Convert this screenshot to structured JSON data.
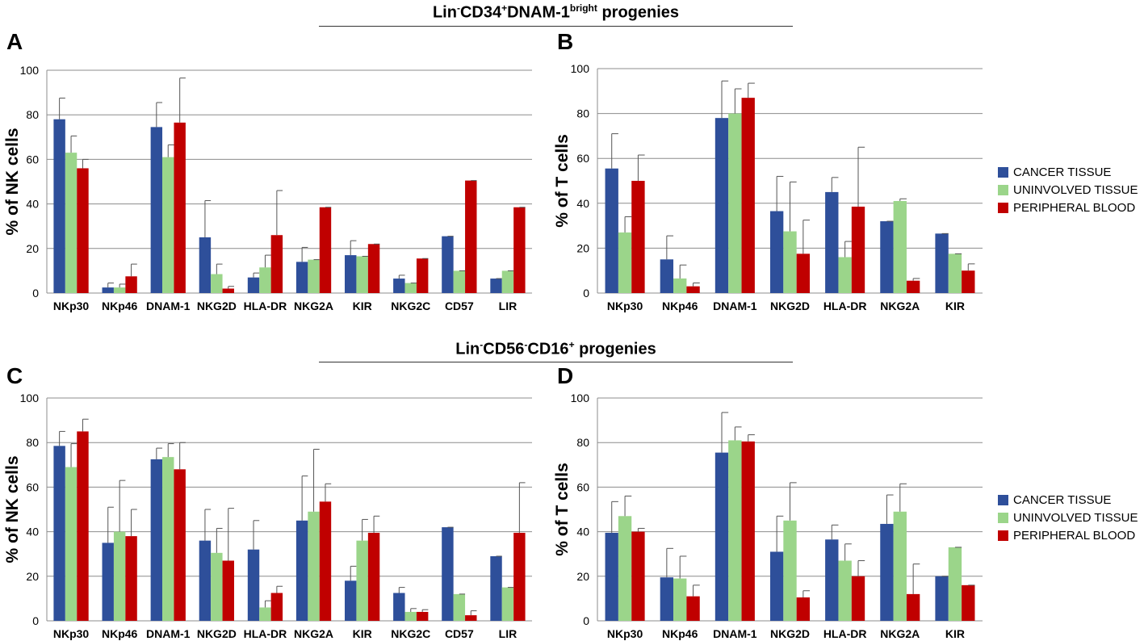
{
  "titles": {
    "top": {
      "part1": "Lin",
      "sup1": "-",
      "part2": "CD34",
      "sup2": "+",
      "part3": "DNAM-1",
      "sup3": "bright",
      "part4": " progenies"
    },
    "bottom": {
      "part1": "Lin",
      "sup1": "-",
      "part2": "CD56",
      "sup2": "-",
      "part3": "CD16",
      "sup3": "+",
      "part4": " progenies"
    }
  },
  "colors": {
    "cancer": "#2E4F9A",
    "uninvolved": "#9BD58A",
    "blood": "#C00000"
  },
  "legend": [
    "CANCER TISSUE",
    "UNINVOLVED TISSUE",
    "PERIPHERAL BLOOD"
  ],
  "chart_data": [
    {
      "panel": "A",
      "type": "bar",
      "ylabel": "% of NK cells",
      "ylim": [
        0,
        100
      ],
      "yticks": [
        0,
        20,
        40,
        60,
        80,
        100
      ],
      "categories": [
        "NKp30",
        "NKp46",
        "DNAM-1",
        "NKG2D",
        "HLA-DR",
        "NKG2A",
        "KIR",
        "NKG2C",
        "CD57",
        "LIR"
      ],
      "series": [
        {
          "name": "CANCER TISSUE",
          "values": [
            78,
            2.5,
            74.5,
            25,
            7,
            14,
            17,
            6.5,
            25.5,
            6.5
          ],
          "errors": [
            9.5,
            2,
            11,
            16.5,
            2,
            6.5,
            6.5,
            1.5,
            0,
            0
          ]
        },
        {
          "name": "UNINVOLVED TISSUE",
          "values": [
            63,
            2.5,
            61,
            8.5,
            11.5,
            15,
            16.5,
            4.5,
            10,
            10
          ],
          "errors": [
            7.5,
            1.5,
            5.5,
            4.5,
            5.5,
            0,
            0,
            0,
            0,
            0
          ]
        },
        {
          "name": "PERIPHERAL BLOOD",
          "values": [
            56,
            7.5,
            76.5,
            2,
            26,
            38.5,
            22,
            15.5,
            50.5,
            38.5
          ],
          "errors": [
            4,
            5.5,
            20,
            1,
            20,
            0,
            0,
            0,
            0,
            0
          ]
        }
      ]
    },
    {
      "panel": "B",
      "type": "bar",
      "ylabel": "% of T cells",
      "ylim": [
        0,
        100
      ],
      "yticks": [
        0,
        20,
        40,
        60,
        80,
        100
      ],
      "categories": [
        "NKp30",
        "NKp46",
        "DNAM-1",
        "NKG2D",
        "HLA-DR",
        "NKG2A",
        "KIR"
      ],
      "series": [
        {
          "name": "CANCER TISSUE",
          "values": [
            55.5,
            15,
            78,
            36.5,
            45,
            32,
            26.5
          ],
          "errors": [
            15.5,
            10.5,
            16.5,
            15.5,
            6.5,
            0,
            0
          ]
        },
        {
          "name": "UNINVOLVED TISSUE",
          "values": [
            27,
            6.5,
            80,
            27.5,
            16,
            41,
            17.5
          ],
          "errors": [
            7,
            6,
            11,
            22,
            7,
            1,
            0
          ]
        },
        {
          "name": "PERIPHERAL BLOOD",
          "values": [
            50,
            3,
            87,
            17.5,
            38.5,
            5.5,
            10
          ],
          "errors": [
            11.5,
            1.5,
            6.5,
            15,
            26.5,
            1,
            3
          ]
        }
      ]
    },
    {
      "panel": "C",
      "type": "bar",
      "ylabel": "% of NK cells",
      "ylim": [
        0,
        100
      ],
      "yticks": [
        0,
        20,
        40,
        60,
        80,
        100
      ],
      "categories": [
        "NKp30",
        "NKp46",
        "DNAM-1",
        "NKG2D",
        "HLA-DR",
        "NKG2A",
        "KIR",
        "NKG2C",
        "CD57",
        "LIR"
      ],
      "series": [
        {
          "name": "CANCER TISSUE",
          "values": [
            78.5,
            35,
            72.5,
            36,
            32,
            45,
            18,
            12.5,
            42,
            29
          ],
          "errors": [
            6.5,
            16,
            5,
            14,
            13,
            20,
            6.5,
            2.5,
            0,
            0
          ]
        },
        {
          "name": "UNINVOLVED TISSUE",
          "values": [
            69,
            40,
            73.5,
            30.5,
            6,
            49,
            36,
            4,
            12,
            15
          ],
          "errors": [
            10.5,
            23,
            6,
            11,
            3,
            28,
            9.5,
            1.5,
            0,
            0
          ]
        },
        {
          "name": "PERIPHERAL BLOOD",
          "values": [
            85,
            38,
            68,
            27,
            12.5,
            53.5,
            39.5,
            4,
            2.5,
            39.5
          ],
          "errors": [
            5.5,
            12,
            12,
            23.5,
            3,
            8,
            7.5,
            1,
            2,
            22.5
          ]
        }
      ]
    },
    {
      "panel": "D",
      "type": "bar",
      "ylabel": "% of T cells",
      "ylim": [
        0,
        100
      ],
      "yticks": [
        0,
        20,
        40,
        60,
        80,
        100
      ],
      "categories": [
        "NKp30",
        "NKp46",
        "DNAM-1",
        "NKG2D",
        "HLA-DR",
        "NKG2A",
        "KIR"
      ],
      "series": [
        {
          "name": "CANCER TISSUE",
          "values": [
            39.5,
            19.5,
            75.5,
            31,
            36.5,
            43.5,
            20
          ],
          "errors": [
            14,
            13,
            18,
            16,
            6.5,
            13,
            0
          ]
        },
        {
          "name": "UNINVOLVED TISSUE",
          "values": [
            47,
            19,
            81,
            45,
            27,
            49,
            33
          ],
          "errors": [
            9,
            10,
            6,
            17,
            7.5,
            12.5,
            0
          ]
        },
        {
          "name": "PERIPHERAL BLOOD",
          "values": [
            40,
            11,
            80.5,
            10.5,
            20,
            12,
            16
          ],
          "errors": [
            1.5,
            5,
            3,
            3,
            7,
            13.5,
            0
          ]
        }
      ]
    }
  ]
}
